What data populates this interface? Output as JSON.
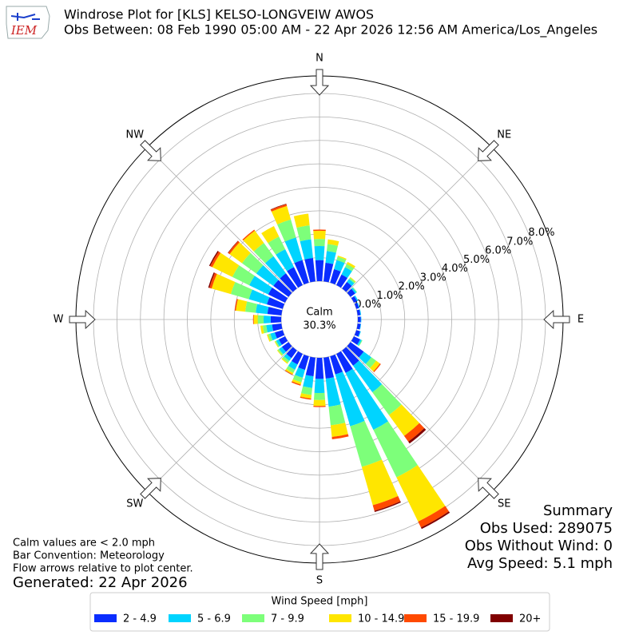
{
  "chart_data": {
    "type": "windrose",
    "logo_text": "IEM",
    "title": "Windrose Plot for [KLS] KELSO-LONGVEIW AWOS",
    "subtitle": "Obs Between: 08 Feb 1990 05:00 AM - 22 Apr 2026 12:56 AM America/Los_Angeles",
    "directions": [
      0,
      10,
      20,
      30,
      40,
      50,
      60,
      70,
      80,
      90,
      100,
      110,
      120,
      130,
      140,
      150,
      160,
      170,
      180,
      190,
      200,
      210,
      220,
      230,
      240,
      250,
      260,
      270,
      280,
      290,
      300,
      310,
      320,
      330,
      340,
      350
    ],
    "series": [
      {
        "name": "2 - 4.9",
        "color": "#0a2dff",
        "values": [
          0.9,
          0.8,
          0.6,
          0.5,
          0.35,
          0.25,
          0.15,
          0.12,
          0.12,
          0.13,
          0.13,
          0.17,
          0.3,
          0.7,
          0.8,
          0.9,
          0.8,
          0.9,
          0.9,
          0.8,
          0.6,
          0.5,
          0.4,
          0.35,
          0.3,
          0.35,
          0.4,
          0.45,
          0.6,
          0.7,
          0.8,
          0.8,
          0.8,
          0.85,
          1.0,
          1.0
        ]
      },
      {
        "name": "5 - 6.9",
        "color": "#00d4ff",
        "values": [
          0.6,
          0.5,
          0.4,
          0.35,
          0.15,
          0.07,
          0.05,
          0.03,
          0.03,
          0.02,
          0.02,
          0.03,
          0.07,
          0.4,
          1.4,
          2.7,
          2.3,
          1.2,
          0.6,
          0.5,
          0.35,
          0.25,
          0.15,
          0.15,
          0.12,
          0.2,
          0.25,
          0.3,
          0.5,
          0.8,
          0.9,
          0.9,
          0.9,
          0.85,
          1.0,
          0.8
        ]
      },
      {
        "name": "7 - 9.9",
        "color": "#7dff7a",
        "values": [
          0.3,
          0.3,
          0.15,
          0.15,
          0.07,
          0.03,
          0,
          0,
          0,
          0,
          0,
          0,
          0.03,
          0.25,
          1.2,
          2.25,
          1.8,
          0.8,
          0.3,
          0.3,
          0.2,
          0.15,
          0.1,
          0.07,
          0.05,
          0.1,
          0.15,
          0.25,
          0.45,
          0.8,
          0.8,
          0.75,
          0.7,
          0.6,
          0.8,
          0.6
        ]
      },
      {
        "name": "10 - 14.9",
        "color": "#ffe600",
        "values": [
          0.35,
          0.2,
          0.05,
          0.1,
          0.03,
          0,
          0,
          0,
          0,
          0,
          0,
          0,
          0,
          0.2,
          1.1,
          2.1,
          1.7,
          0.5,
          0.25,
          0.15,
          0.1,
          0.07,
          0.05,
          0.03,
          0.03,
          0.05,
          0.1,
          0.17,
          0.4,
          0.85,
          0.95,
          0.65,
          0.65,
          0.5,
          0.6,
          0.5
        ]
      },
      {
        "name": "15 - 19.9",
        "color": "#ff4a00",
        "values": [
          0.05,
          0,
          0,
          0,
          0,
          0,
          0,
          0,
          0,
          0,
          0,
          0,
          0,
          0.05,
          0.3,
          0.28,
          0.25,
          0.1,
          0.05,
          0.05,
          0.05,
          0.03,
          0,
          0,
          0,
          0,
          0,
          0.03,
          0.05,
          0.1,
          0.1,
          0.08,
          0.05,
          0,
          0.08,
          0
        ]
      },
      {
        "name": "20+",
        "color": "#800000",
        "values": [
          0,
          0,
          0,
          0,
          0,
          0,
          0,
          0,
          0,
          0,
          0,
          0,
          0,
          0,
          0.1,
          0.07,
          0.05,
          0,
          0,
          0,
          0,
          0,
          0,
          0,
          0,
          0,
          0,
          0,
          0,
          0.05,
          0.05,
          0.02,
          0,
          0,
          0.02,
          0
        ]
      }
    ],
    "xticks": [
      {
        "value": 0,
        "label": "N"
      },
      {
        "value": 45,
        "label": "NE"
      },
      {
        "value": 90,
        "label": "E"
      },
      {
        "value": 135,
        "label": "SE"
      },
      {
        "value": 180,
        "label": "S"
      },
      {
        "value": 225,
        "label": "SW"
      },
      {
        "value": 270,
        "label": "W"
      },
      {
        "value": 315,
        "label": "NW"
      }
    ],
    "ylim": [
      0,
      8.75
    ],
    "yticks": [
      {
        "value": 0,
        "label": "0.0%"
      },
      {
        "value": 1,
        "label": "1.0%"
      },
      {
        "value": 2,
        "label": "2.0%"
      },
      {
        "value": 3,
        "label": "3.0%"
      },
      {
        "value": 4,
        "label": "4.0%"
      },
      {
        "value": 5,
        "label": "5.0%"
      },
      {
        "value": 6,
        "label": "6.0%"
      },
      {
        "value": 7,
        "label": "7.0%"
      },
      {
        "value": 8,
        "label": "8.0%"
      }
    ],
    "grid": true,
    "calm_label": "Calm",
    "calm_value": 30.3,
    "calm_value_label": "30.3%",
    "notes": [
      "Calm values are < 2.0 mph",
      "Bar Convention: Meteorology",
      "Flow arrows relative to plot center."
    ],
    "generated": "Generated: 22 Apr 2026",
    "summary": [
      "Summary",
      "Obs Used: 289075",
      "Obs Without Wind: 0",
      "Avg Speed: 5.1 mph"
    ],
    "legend_title": "Wind Speed [mph]"
  }
}
